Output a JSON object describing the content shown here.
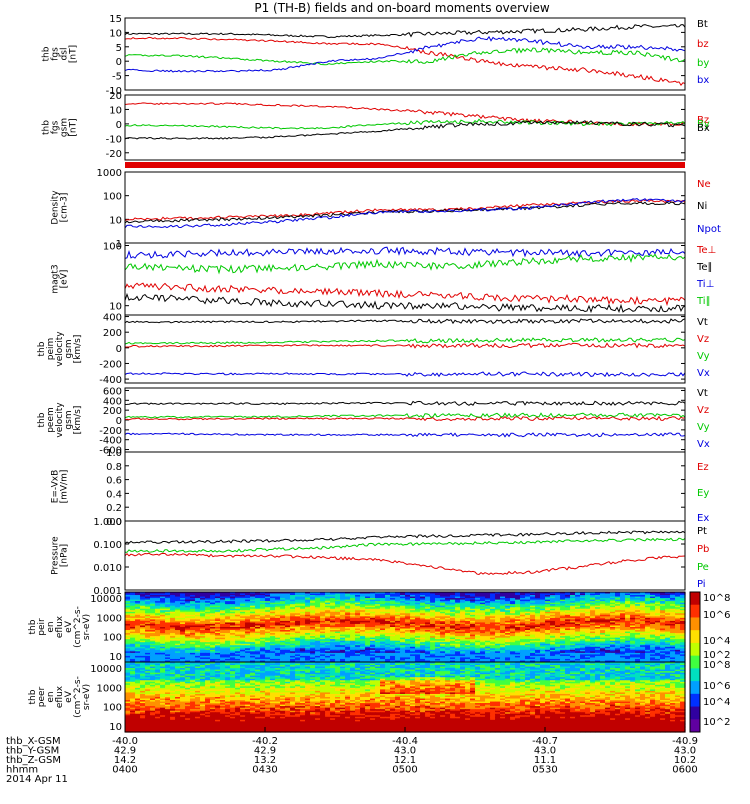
{
  "title": "P1 (TH-B) fields and on-board moments overview",
  "date_label": "2014 Apr 11",
  "colorbar": {
    "ticks": [
      "10^8",
      "10^6",
      "10^4",
      "10^2"
    ]
  },
  "ephemeris": {
    "rows": [
      {
        "label": "thb_X-GSM",
        "values": [
          "-40.0",
          "-40.2",
          "-40.4",
          "-40.7",
          "-40.9"
        ]
      },
      {
        "label": "thb_Y-GSM",
        "values": [
          "42.9",
          "42.9",
          "43.0",
          "43.0",
          "43.0"
        ]
      },
      {
        "label": "thb_Z-GSM",
        "values": [
          "14.2",
          "13.2",
          "12.1",
          "11.1",
          "10.2"
        ]
      },
      {
        "label": "hhmm",
        "values": [
          "0400",
          "0430",
          "0500",
          "0530",
          "0600"
        ]
      }
    ]
  },
  "chart_data": [
    {
      "type": "line",
      "panel": "fgs_dsl",
      "ylabel_lines": [
        "thb",
        "fgs",
        "dsl",
        "[nT]"
      ],
      "yticks": [
        "15",
        "10",
        "5",
        "0",
        "-5",
        "-10"
      ],
      "ylim": [
        -10,
        15
      ],
      "series": [
        {
          "name": "Bt",
          "color": "#000000",
          "values": [
            9.5,
            9.5,
            9.5,
            9,
            8.5,
            9,
            9.5,
            10,
            10.5,
            11,
            12,
            12
          ]
        },
        {
          "name": "bz",
          "color": "#e00000",
          "values": [
            8,
            8,
            7.5,
            7,
            6,
            6,
            3,
            0,
            -2,
            -3,
            -5,
            -8
          ]
        },
        {
          "name": "by",
          "color": "#00c800",
          "values": [
            2,
            2,
            1,
            0,
            -1,
            0,
            0,
            3,
            4,
            3,
            3,
            0
          ]
        },
        {
          "name": "bx",
          "color": "#0000e0",
          "values": [
            -3,
            -3.5,
            -3.5,
            -3,
            0,
            1,
            5,
            8,
            7,
            5,
            5,
            4
          ]
        }
      ]
    },
    {
      "type": "line",
      "panel": "fgs_gsm",
      "ylabel_lines": [
        "thb",
        "fgs",
        "gsm",
        "[nT]"
      ],
      "yticks": [
        "20",
        "10",
        "0",
        "-10",
        "-20"
      ],
      "ylim": [
        -25,
        20
      ],
      "series": [
        {
          "name": "Bz",
          "color": "#e00000",
          "values": [
            14,
            14,
            14,
            13,
            12,
            10,
            8,
            5,
            2,
            1,
            0,
            0
          ]
        },
        {
          "name": "By",
          "color": "#00c800",
          "values": [
            -1,
            -1,
            -2,
            -3,
            -3,
            0,
            1,
            2,
            1,
            0,
            0,
            1
          ]
        },
        {
          "name": "Bx",
          "color": "#000000",
          "values": [
            -10,
            -10,
            -10,
            -9,
            -7,
            -5,
            -2,
            0,
            1,
            1,
            0,
            -1
          ]
        }
      ]
    },
    {
      "type": "line",
      "panel": "density",
      "ylabel_lines": [
        "Density",
        "[cm-3]"
      ],
      "yticks": [
        "1000",
        "100",
        "10",
        "1"
      ],
      "ylim": [
        1,
        1000
      ],
      "log": true,
      "series": [
        {
          "name": "Ne",
          "color": "#e00000",
          "values": [
            10,
            11,
            12,
            14,
            18,
            25,
            25,
            30,
            40,
            50,
            60,
            55
          ]
        },
        {
          "name": "Ni",
          "color": "#000000",
          "values": [
            8,
            9,
            10,
            12,
            15,
            20,
            22,
            25,
            30,
            40,
            50,
            45
          ]
        },
        {
          "name": "Npot",
          "color": "#0000e0",
          "values": [
            5,
            5,
            6,
            8,
            12,
            20,
            22,
            25,
            30,
            50,
            70,
            60
          ]
        }
      ]
    },
    {
      "type": "line",
      "panel": "temperature",
      "ylabel_lines": [
        "magt3",
        "[eV]"
      ],
      "yticks": [
        "100",
        "10"
      ],
      "ylim": [
        7,
        110
      ],
      "log": true,
      "series": [
        {
          "name": "Te⊥",
          "color": "#e00000",
          "values": [
            22,
            20,
            19,
            18,
            17,
            16,
            15,
            14,
            13,
            13,
            12,
            12
          ]
        },
        {
          "name": "Te∥",
          "color": "#000000",
          "values": [
            14,
            13,
            12,
            11,
            11,
            10,
            10,
            9.5,
            9,
            9,
            9,
            9
          ]
        },
        {
          "name": "Ti⊥",
          "color": "#0000e0",
          "values": [
            70,
            72,
            75,
            78,
            80,
            82,
            80,
            78,
            76,
            75,
            78,
            80
          ]
        },
        {
          "name": "Ti∥",
          "color": "#00c800",
          "values": [
            45,
            42,
            40,
            42,
            45,
            50,
            45,
            48,
            55,
            60,
            62,
            65
          ]
        }
      ]
    },
    {
      "type": "line",
      "panel": "peim_velocity",
      "ylabel_lines": [
        "thb",
        "peim",
        "velocity",
        "gsm",
        "[km/s]"
      ],
      "yticks": [
        "400",
        "200",
        "0",
        "-200",
        "-400"
      ],
      "ylim": [
        -450,
        420
      ],
      "series": [
        {
          "name": "Vt",
          "color": "#000000",
          "values": [
            330,
            330,
            335,
            330,
            340,
            345,
            340,
            335,
            340,
            345,
            340,
            345
          ]
        },
        {
          "name": "Vz",
          "color": "#e00000",
          "values": [
            20,
            20,
            25,
            30,
            30,
            30,
            25,
            30,
            30,
            35,
            30,
            30
          ]
        },
        {
          "name": "Vy",
          "color": "#00c800",
          "values": [
            60,
            60,
            65,
            70,
            80,
            90,
            90,
            95,
            100,
            100,
            100,
            100
          ]
        },
        {
          "name": "Vx",
          "color": "#0000e0",
          "values": [
            -330,
            -330,
            -335,
            -330,
            -335,
            -335,
            -340,
            -335,
            -335,
            -340,
            -340,
            -340
          ]
        }
      ]
    },
    {
      "type": "line",
      "panel": "peem_velocity",
      "ylabel_lines": [
        "thb",
        "peem",
        "velocity",
        "gsm",
        "[km/s]"
      ],
      "yticks": [
        "600",
        "400",
        "200",
        "0",
        "-200",
        "-400",
        "-600"
      ],
      "ylim": [
        -650,
        650
      ],
      "series": [
        {
          "name": "Vt",
          "color": "#000000",
          "values": [
            330,
            330,
            335,
            330,
            340,
            345,
            340,
            335,
            340,
            345,
            340,
            345
          ]
        },
        {
          "name": "Vz",
          "color": "#e00000",
          "values": [
            20,
            20,
            25,
            30,
            30,
            30,
            25,
            30,
            30,
            35,
            30,
            30
          ]
        },
        {
          "name": "Vy",
          "color": "#00c800",
          "values": [
            60,
            60,
            65,
            70,
            80,
            90,
            90,
            95,
            100,
            100,
            100,
            100
          ]
        },
        {
          "name": "Vx",
          "color": "#0000e0",
          "values": [
            -280,
            -280,
            -290,
            -300,
            -300,
            -300,
            -300,
            -300,
            -300,
            -300,
            -300,
            -300
          ]
        }
      ]
    },
    {
      "type": "line",
      "panel": "efield",
      "ylabel_lines": [
        "E=-VxB",
        "[mV/m]"
      ],
      "yticks": [
        "1.0",
        "0.8",
        "0.6",
        "0.4",
        "0.2",
        "0.0"
      ],
      "ylim": [
        0,
        1
      ],
      "series": [
        {
          "name": "Ez",
          "color": "#e00000",
          "values": []
        },
        {
          "name": "Ey",
          "color": "#00c800",
          "values": []
        },
        {
          "name": "Ex",
          "color": "#0000e0",
          "values": []
        }
      ]
    },
    {
      "type": "line",
      "panel": "pressure",
      "ylabel_lines": [
        "Pressure",
        "[nPa]"
      ],
      "yticks": [
        "1.000",
        "0.100",
        "0.010",
        "0.001"
      ],
      "ylim": [
        0.001,
        1
      ],
      "log": true,
      "series": [
        {
          "name": "Pt",
          "color": "#000000",
          "values": [
            0.12,
            0.12,
            0.13,
            0.14,
            0.16,
            0.2,
            0.22,
            0.24,
            0.26,
            0.3,
            0.32,
            0.33
          ]
        },
        {
          "name": "Pb",
          "color": "#e00000",
          "values": [
            0.035,
            0.035,
            0.03,
            0.03,
            0.025,
            0.02,
            0.01,
            0.005,
            0.006,
            0.01,
            0.02,
            0.03
          ]
        },
        {
          "name": "Pe",
          "color": "#00c800",
          "values": [
            0.05,
            0.05,
            0.05,
            0.06,
            0.07,
            0.1,
            0.1,
            0.11,
            0.12,
            0.14,
            0.15,
            0.16
          ]
        },
        {
          "name": "Pi",
          "color": "#0000e0",
          "values": []
        }
      ]
    },
    {
      "type": "heatmap",
      "panel": "peir",
      "ylabel_lines": [
        "thb",
        "peir",
        "en",
        "eflux",
        "eV",
        "(cm^2-s-",
        "sr-eV)"
      ],
      "yticks": [
        "10000",
        "1000",
        "100",
        "10"
      ],
      "ylim": [
        5,
        20000
      ],
      "log": true
    },
    {
      "type": "heatmap",
      "panel": "peer",
      "ylabel_lines": [
        "thb",
        "peer",
        "en",
        "eflux",
        "eV",
        "(cm^2-s-",
        "sr-eV)"
      ],
      "yticks": [
        "10000",
        "1000",
        "100",
        "10"
      ],
      "ylim": [
        5,
        20000
      ],
      "log": true
    }
  ]
}
